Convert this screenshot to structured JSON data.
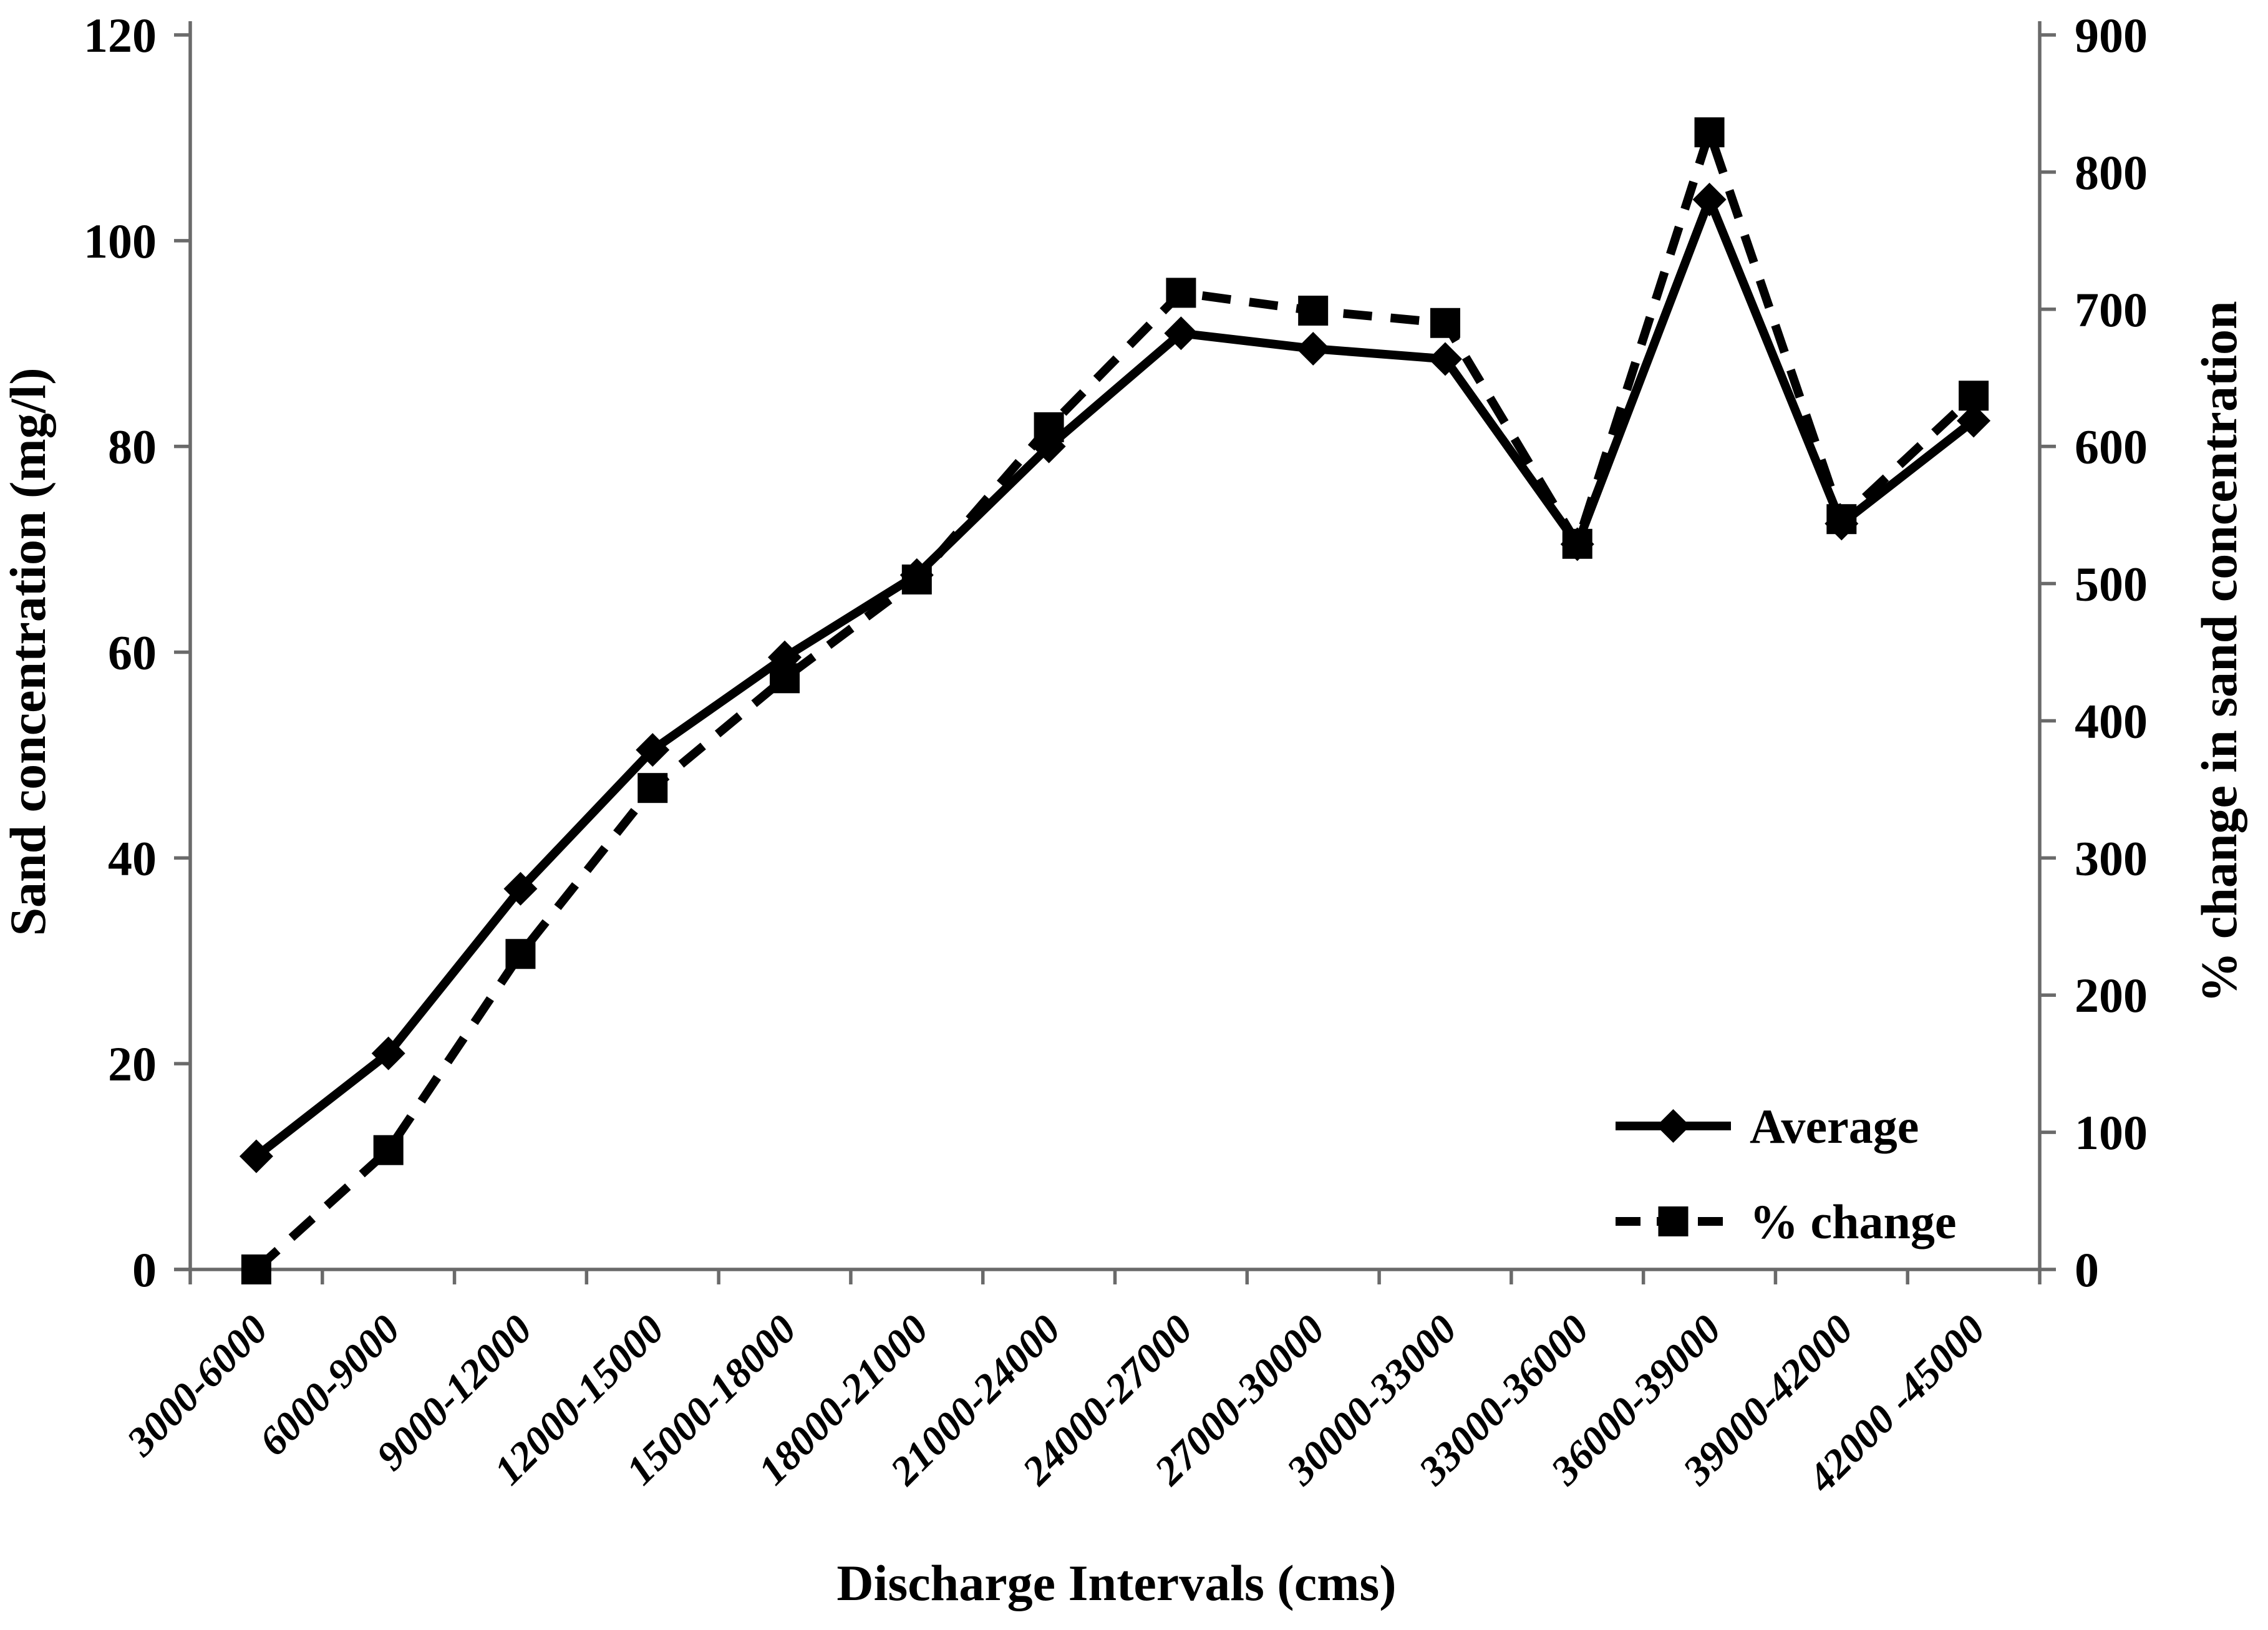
{
  "colors": {
    "background": "#ffffff",
    "axis_line": "#6a6a6a",
    "series": "#000000",
    "text": "#000000"
  },
  "chart_data": {
    "type": "line",
    "title": "",
    "xlabel": "Discharge  Intervals  (cms)",
    "categories": [
      "3000-6000",
      "6000-9000",
      "9000-12000",
      "12000-15000",
      "15000-18000",
      "18000-21000",
      "21000-24000",
      "24000-27000",
      "27000-30000",
      "30000-33000",
      "33000-36000",
      "36000-39000",
      "39000-42000",
      "42000 -45000"
    ],
    "axes": {
      "left": {
        "label": "Sand concentration (mg/l)",
        "min": 0,
        "max": 120,
        "step": 20
      },
      "right": {
        "label": "% change in sand concentration",
        "min": 0,
        "max": 900,
        "step": 100
      }
    },
    "series": [
      {
        "name": "Average",
        "axis": "left",
        "marker": "diamond",
        "line_style": "solid",
        "values": [
          11,
          21,
          37,
          50.5,
          59.5,
          67.5,
          80,
          91,
          89.5,
          88.5,
          70.5,
          104,
          72.5,
          82.5
        ]
      },
      {
        "name": "% change",
        "axis": "right",
        "marker": "square",
        "line_style": "dashed",
        "values": [
          0,
          87,
          230,
          351,
          431,
          503,
          614,
          712,
          699,
          690,
          529,
          829,
          547,
          637
        ]
      }
    ],
    "legend": {
      "position": "inside-bottom-right",
      "entries": [
        "Average",
        "% change"
      ]
    },
    "grid": false
  }
}
